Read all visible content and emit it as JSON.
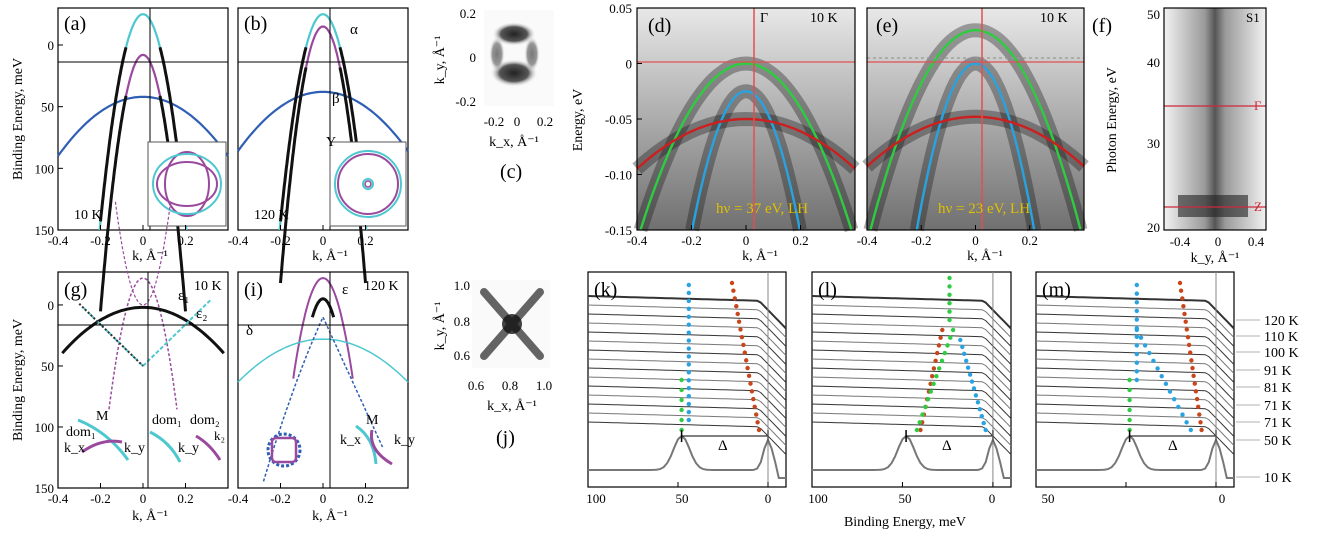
{
  "colors": {
    "cyan": "#4ec8cf",
    "magenta": "#9a4a9e",
    "dark_blue": "#2f5fb5",
    "green": "#2ecc40",
    "red": "#cc1f1f",
    "light_blue": "#29a3e0",
    "orange_red": "#c8461c"
  },
  "panels": {
    "a": {
      "label": "(a)",
      "temp": "10 K"
    },
    "b": {
      "label": "(b)",
      "temp": "120 K",
      "alpha": "α",
      "beta": "β",
      "gamma": "Y"
    },
    "c": {
      "label": "(c)",
      "ylabel": "k_y, Å⁻¹",
      "xlabel": "k_x, Å⁻¹",
      "yticks": [
        "0.2",
        "0",
        "-0.2"
      ],
      "xticks": [
        "-0.2",
        "0",
        "0.2"
      ]
    },
    "d": {
      "label": "(d)",
      "temp": "10 K",
      "gamma": "Γ",
      "hv": "hν = 37 eV, LH",
      "ylabel": "Energy, eV",
      "yticks": [
        "0.05",
        "0",
        "-0.05",
        "-0.10",
        "-0.15"
      ]
    },
    "e": {
      "label": "(e)",
      "temp": "10 K",
      "hv": "hν = 23 eV, LH"
    },
    "f": {
      "label": "(f)",
      "tag": "S1",
      "ylabel": "Photon Energy, eV",
      "xlabel": "k_y, Å⁻¹",
      "yticks": [
        "50",
        "40",
        "30",
        "20"
      ],
      "xticks": [
        "-0.4",
        "0",
        "0.4"
      ],
      "gamma": "Γ",
      "z": "Z"
    },
    "g": {
      "label": "(g)",
      "temp": "10 K",
      "eps1": "ε₁",
      "eps2": "ε₂",
      "m": "M",
      "dom1": "dom₁",
      "dom1b": "dom₁",
      "dom2": "dom₂",
      "kx": "k_x",
      "ky": "k_y",
      "ky2": "k_y",
      "k2": "k₂"
    },
    "i": {
      "label": "(i)",
      "temp": "120 K",
      "delta": "δ",
      "eps": "ε",
      "m": "M",
      "kx": "k_x",
      "ky": "k_y"
    },
    "j": {
      "label": "(j)",
      "ylabel": "k_y, Å⁻¹",
      "xlabel": "k_x, Å⁻¹",
      "yticks": [
        "1.0",
        "0.8",
        "0.6"
      ],
      "xticks": [
        "0.6",
        "0.8",
        "1.0"
      ]
    },
    "k": {
      "label": "(k)",
      "delta": "Δ"
    },
    "l": {
      "label": "(l)",
      "delta": "Δ"
    },
    "m": {
      "label": "(m)",
      "delta": "Δ"
    }
  },
  "axes": {
    "binding_energy_mev": "Binding Energy, meV",
    "k_label": "k, Å⁻¹",
    "k_ticks": [
      "-0.4",
      "-0.2",
      "0",
      "0.2"
    ],
    "be_ticks": [
      "0",
      "50",
      "100",
      "150"
    ],
    "k_ticks_de": [
      "-0.4",
      "-0.2",
      "0",
      "0.2"
    ],
    "edc_xticks": [
      "100",
      "50",
      "0"
    ],
    "edc_xlabel": "Binding Energy, meV"
  },
  "temperature_labels": [
    "120 K",
    "110 K",
    "100 K",
    "91 K",
    "81 K",
    "71 K",
    "71 K",
    "50 K",
    "10 K"
  ],
  "chart_data": [
    {
      "type": "line",
      "panel": "a",
      "xlabel": "k, Å⁻¹",
      "ylabel": "Binding Energy, meV",
      "xlim": [
        -0.4,
        0.4
      ],
      "ylim": [
        150,
        -30
      ],
      "series": [
        {
          "band": "cyan",
          "apex_k": 0.0,
          "apex_be": -25,
          "curv": 4200
        },
        {
          "band": "magenta",
          "apex_k": 0.0,
          "apex_be": 8,
          "curv": 5200
        },
        {
          "band": "blue",
          "apex_k": 0.0,
          "apex_be": 42,
          "curv": 300
        }
      ]
    },
    {
      "type": "line",
      "panel": "b",
      "xlim": [
        -0.4,
        0.4
      ],
      "ylim": [
        150,
        -30
      ],
      "series": [
        {
          "band": "cyan",
          "apex_k": 0.0,
          "apex_be": -25,
          "curv": 4200
        },
        {
          "band": "magenta",
          "apex_k": 0.0,
          "apex_be": -15,
          "curv": 5200
        },
        {
          "band": "blue",
          "apex_k": 0.0,
          "apex_be": 38,
          "curv": 300
        }
      ]
    },
    {
      "type": "line",
      "panel": "d",
      "ylabel": "Energy, eV",
      "xlabel": "k, Å⁻¹",
      "xlim": [
        -0.4,
        0.4
      ],
      "ylim": [
        -0.15,
        0.05
      ],
      "series": [
        {
          "band": "green",
          "apex_e": 0.0,
          "curv": 1.0
        },
        {
          "band": "light_blue",
          "apex_e": -0.025,
          "curv": 3.2
        },
        {
          "band": "red",
          "apex_e": -0.05,
          "curv": 0.28
        }
      ]
    },
    {
      "type": "line",
      "panel": "e",
      "xlim": [
        -0.4,
        0.4
      ],
      "ylim": [
        -0.15,
        0.05
      ],
      "series": [
        {
          "band": "green",
          "apex_e": 0.03,
          "curv": 1.2
        },
        {
          "band": "light_blue",
          "apex_e": 0.0,
          "curv": 3.2
        },
        {
          "band": "red",
          "apex_e": -0.048,
          "curv": 0.28
        }
      ]
    },
    {
      "type": "line",
      "panel": "k-l-m",
      "xlabel": "Binding Energy, meV",
      "xlim": [
        100,
        -10
      ],
      "series_labels": [
        "120 K",
        "110 K",
        "100 K",
        "91 K",
        "81 K",
        "71 K",
        "71 K",
        "50 K",
        "10 K"
      ]
    }
  ]
}
